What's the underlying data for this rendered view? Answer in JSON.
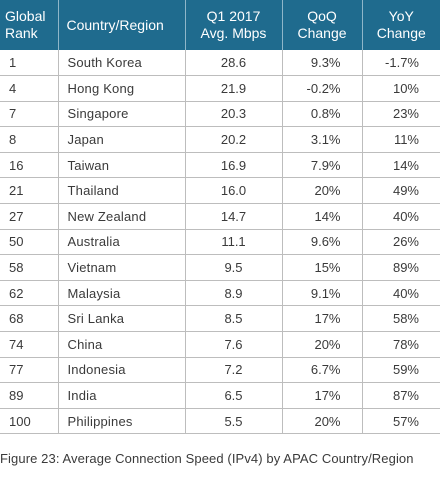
{
  "headers": {
    "rank": [
      "Global",
      "Rank"
    ],
    "country": "Country/Region",
    "speed": [
      "Q1 2017",
      "Avg. Mbps"
    ],
    "qoq": [
      "QoQ",
      "Change"
    ],
    "yoy": [
      "YoY",
      "Change"
    ]
  },
  "rows": [
    {
      "rank": "1",
      "country": "South Korea",
      "speed": "28.6",
      "qoq": "9.3%",
      "yoy": "-1.7%"
    },
    {
      "rank": "4",
      "country": "Hong Kong",
      "speed": "21.9",
      "qoq": "-0.2%",
      "yoy": "10%"
    },
    {
      "rank": "7",
      "country": "Singapore",
      "speed": "20.3",
      "qoq": "0.8%",
      "yoy": "23%"
    },
    {
      "rank": "8",
      "country": "Japan",
      "speed": "20.2",
      "qoq": "3.1%",
      "yoy": "11%"
    },
    {
      "rank": "16",
      "country": "Taiwan",
      "speed": "16.9",
      "qoq": "7.9%",
      "yoy": "14%"
    },
    {
      "rank": "21",
      "country": "Thailand",
      "speed": "16.0",
      "qoq": "20%",
      "yoy": "49%"
    },
    {
      "rank": "27",
      "country": "New Zealand",
      "speed": "14.7",
      "qoq": "14%",
      "yoy": "40%"
    },
    {
      "rank": "50",
      "country": "Australia",
      "speed": "11.1",
      "qoq": "9.6%",
      "yoy": "26%"
    },
    {
      "rank": "58",
      "country": "Vietnam",
      "speed": "9.5",
      "qoq": "15%",
      "yoy": "89%"
    },
    {
      "rank": "62",
      "country": "Malaysia",
      "speed": "8.9",
      "qoq": "9.1%",
      "yoy": "40%"
    },
    {
      "rank": "68",
      "country": "Sri Lanka",
      "speed": "8.5",
      "qoq": "17%",
      "yoy": "58%"
    },
    {
      "rank": "74",
      "country": "China",
      "speed": "7.6",
      "qoq": "20%",
      "yoy": "78%"
    },
    {
      "rank": "77",
      "country": "Indonesia",
      "speed": "7.2",
      "qoq": "6.7%",
      "yoy": "59%"
    },
    {
      "rank": "89",
      "country": "India",
      "speed": "6.5",
      "qoq": "17%",
      "yoy": "87%"
    },
    {
      "rank": "100",
      "country": "Philippines",
      "speed": "5.5",
      "qoq": "20%",
      "yoy": "57%"
    }
  ],
  "caption": "Figure 23: Average Connection Speed (IPv4) by APAC Country/Region",
  "colors": {
    "header_bg": "#1f6b8e",
    "header_text": "#ffffff",
    "grid": "#bdbdbd"
  }
}
